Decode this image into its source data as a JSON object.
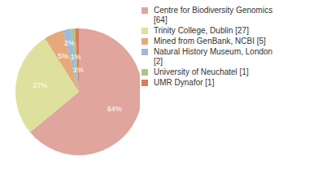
{
  "chart_data": {
    "type": "pie",
    "categories": [
      "Centre for Biodiversity Genomics [64]",
      "Trinity College, Dublin [27]",
      "Mined from GenBank, NCBI [5]",
      "Natural History Museum, London [2]",
      "University of Neuchatel [1]",
      "UMR Dynafor [1]"
    ],
    "values": [
      64,
      27,
      5,
      2,
      1,
      1
    ],
    "value_labels": [
      "64%",
      "27%",
      "5%",
      "2%",
      "1%",
      "1%"
    ],
    "colors": [
      "#e0a59d",
      "#dee19d",
      "#e8a97a",
      "#9fb9d9",
      "#a8c68c",
      "#db7b5c"
    ],
    "data_labels": true,
    "legend": "right"
  }
}
